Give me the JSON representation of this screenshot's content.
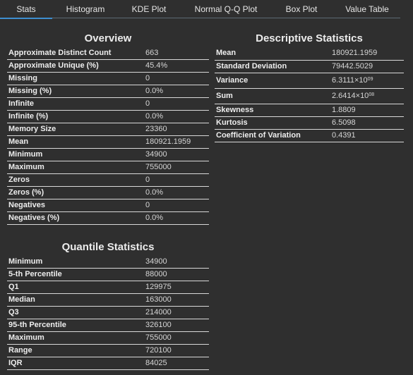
{
  "tabs": [
    {
      "label": "Stats"
    },
    {
      "label": "Histogram"
    },
    {
      "label": "KDE Plot"
    },
    {
      "label": "Normal Q-Q Plot"
    },
    {
      "label": "Box Plot"
    },
    {
      "label": "Value Table"
    }
  ],
  "overview": {
    "title": "Overview",
    "rows": [
      {
        "label": "Approximate Distinct Count",
        "value": "663"
      },
      {
        "label": "Approximate Unique (%)",
        "value": "45.4%"
      },
      {
        "label": "Missing",
        "value": "0"
      },
      {
        "label": "Missing (%)",
        "value": "0.0%"
      },
      {
        "label": "Infinite",
        "value": "0"
      },
      {
        "label": "Infinite (%)",
        "value": "0.0%"
      },
      {
        "label": "Memory Size",
        "value": "23360"
      },
      {
        "label": "Mean",
        "value": "180921.1959"
      },
      {
        "label": "Minimum",
        "value": "34900"
      },
      {
        "label": "Maximum",
        "value": "755000"
      },
      {
        "label": "Zeros",
        "value": "0"
      },
      {
        "label": "Zeros (%)",
        "value": "0.0%"
      },
      {
        "label": "Negatives",
        "value": "0"
      },
      {
        "label": "Negatives (%)",
        "value": "0.0%"
      }
    ]
  },
  "descriptive": {
    "title": "Descriptive Statistics",
    "rows": [
      {
        "label": "Mean",
        "value": "180921.1959"
      },
      {
        "label": "Standard Deviation",
        "value": "79442.5029"
      },
      {
        "label": "Variance",
        "value": "6.3111×10",
        "exp": "09"
      },
      {
        "label": "Sum",
        "value": "2.6414×10",
        "exp": "08"
      },
      {
        "label": "Skewness",
        "value": "1.8809"
      },
      {
        "label": "Kurtosis",
        "value": "6.5098"
      },
      {
        "label": "Coefficient of Variation",
        "value": "0.4391"
      }
    ]
  },
  "quantile": {
    "title": "Quantile Statistics",
    "rows": [
      {
        "label": "Minimum",
        "value": "34900"
      },
      {
        "label": "5-th Percentile",
        "value": "88000"
      },
      {
        "label": "Q1",
        "value": "129975"
      },
      {
        "label": "Median",
        "value": "163000"
      },
      {
        "label": "Q3",
        "value": "214000"
      },
      {
        "label": "95-th Percentile",
        "value": "326100"
      },
      {
        "label": "Maximum",
        "value": "755000"
      },
      {
        "label": "Range",
        "value": "720100"
      },
      {
        "label": "IQR",
        "value": "84025"
      }
    ]
  }
}
